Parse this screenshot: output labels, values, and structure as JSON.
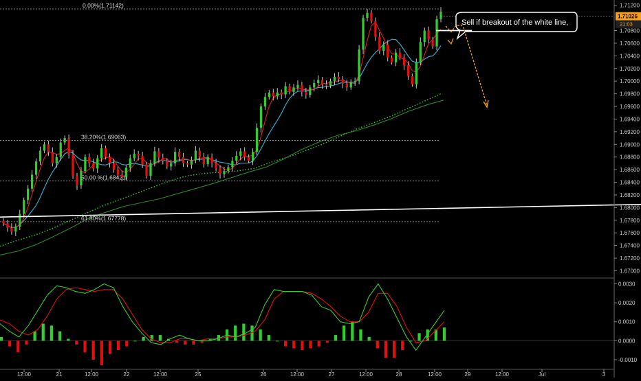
{
  "chart_data": {
    "type": "candlestick",
    "main": {
      "ylim": [
        1.6694,
        1.7124
      ],
      "y_ticks": [
        "1.71200",
        "1.70800",
        "1.70600",
        "1.70400",
        "1.70200",
        "1.70000",
        "1.69800",
        "1.69600",
        "1.69400",
        "1.69200",
        "1.69000",
        "1.68800",
        "1.68600",
        "1.68400",
        "1.68200",
        "1.68000",
        "1.67800",
        "1.67600",
        "1.67400",
        "1.67200",
        "1.67000"
      ],
      "current_price": "1.71026",
      "countdown": "21:03",
      "fib_levels": [
        {
          "label": "0.00%(1.71142)",
          "value": 1.71142
        },
        {
          "label": "38.20%(1.69063)",
          "value": 1.69063
        },
        {
          "label": "50.00 %(1.68421)",
          "value": 1.68421
        },
        {
          "label": "61.80%(1.67778)",
          "value": 1.67778
        }
      ],
      "trendline": {
        "start": [
          0,
          1.6785
        ],
        "end": [
          932,
          1.6805
        ]
      },
      "annotation": {
        "text": "Sell if breakout of the white line,"
      },
      "close_series": [
        1.6775,
        1.6768,
        1.6762,
        1.677,
        1.679,
        1.6812,
        1.683,
        1.6852,
        1.6873,
        1.689,
        1.69,
        1.6888,
        1.687,
        1.688,
        1.6903,
        1.691,
        1.6884,
        1.685,
        1.6835,
        1.6858,
        1.688,
        1.687,
        1.6862,
        1.6878,
        1.6894,
        1.688,
        1.687,
        1.686,
        1.6852,
        1.6848,
        1.6863,
        1.6878,
        1.6885,
        1.6882,
        1.6868,
        1.685,
        1.687,
        1.6889,
        1.6879,
        1.6874,
        1.6865,
        1.687,
        1.6888,
        1.688,
        1.687,
        1.6868,
        1.6875,
        1.689,
        1.688,
        1.6869,
        1.688,
        1.687,
        1.6862,
        1.6853,
        1.6858,
        1.6864,
        1.6874,
        1.6882,
        1.6889,
        1.688,
        1.6874,
        1.6888,
        1.6926,
        1.696,
        1.6975,
        1.6982,
        1.6976,
        1.6982,
        1.6979,
        1.6992,
        1.6983,
        1.699,
        1.6994,
        1.6983,
        1.6978,
        1.699,
        1.6997,
        1.7002,
        1.6995,
        1.6993,
        1.7,
        1.7007,
        1.7003,
        1.6996,
        1.699,
        1.6999,
        1.7,
        1.705,
        1.71,
        1.7108,
        1.7095,
        1.707,
        1.7048,
        1.7058,
        1.7037,
        1.703,
        1.7045,
        1.7038,
        1.7025,
        1.7008,
        1.6995,
        1.703,
        1.7062,
        1.708,
        1.7066,
        1.7055,
        1.7098,
        1.711
      ],
      "ma_slow": [
        1.6739,
        1.6748,
        1.6756,
        1.6766,
        1.6778,
        1.679,
        1.6802,
        1.6812,
        1.6822,
        1.6832,
        1.6842,
        1.685,
        1.6854,
        1.6856,
        1.6858,
        1.6862,
        1.6872,
        1.688,
        1.689,
        1.69,
        1.6912,
        1.6924,
        1.6934,
        1.6944,
        1.6956,
        1.6968,
        1.698
      ],
      "ma_200": [
        1.6725,
        1.6731,
        1.6741,
        1.6754,
        1.6768,
        1.6783,
        1.6793,
        1.6802,
        1.6808,
        1.6814,
        1.6822,
        1.683,
        1.6838,
        1.6847,
        1.6856,
        1.6864,
        1.6877,
        1.6892,
        1.6904,
        1.6914,
        1.6921,
        1.693,
        1.694,
        1.6952,
        1.6962,
        1.697
      ]
    },
    "oscillator": {
      "ylim": [
        -0.0014,
        0.0032
      ],
      "y_ticks": [
        "0.0030",
        "0.0020",
        "0.0010",
        "0.0000",
        "-0.0010"
      ],
      "green_line": [
        0.0009,
        0.0005,
        0.0002,
        0.0008,
        0.0016,
        0.0024,
        0.0029,
        0.0028,
        0.0026,
        0.0025,
        0.0027,
        0.003,
        0.0028,
        0.0018,
        0.001,
        0.0004,
        -0.0001,
        -0.0002,
        0.0001,
        0.0003,
        0.0001,
        0.0,
        0.0,
        0.0001,
        0.0003,
        0.0002,
        0.0004,
        0.0007,
        0.0019,
        0.0027,
        0.0026,
        0.0026,
        0.0026,
        0.0024,
        0.0018,
        0.0016,
        0.001,
        0.0009,
        0.001,
        0.0023,
        0.003,
        0.0022,
        0.0012,
        0.0002,
        -0.0005,
        0.0002,
        0.0009,
        0.0016
      ],
      "red_line": [
        0.0011,
        0.0009,
        0.0005,
        0.0003,
        0.0006,
        0.0013,
        0.0022,
        0.0027,
        0.0028,
        0.0027,
        0.0026,
        0.0027,
        0.0027,
        0.0022,
        0.0014,
        0.0006,
        0.0001,
        -0.0001,
        -0.0001,
        0.0001,
        0.0001,
        0.0,
        0.0001,
        0.0001,
        0.0002,
        0.0002,
        0.0003,
        0.0005,
        0.0011,
        0.0022,
        0.0026,
        0.0026,
        0.0026,
        0.0025,
        0.0022,
        0.0018,
        0.0013,
        0.001,
        0.001,
        0.0015,
        0.0025,
        0.0025,
        0.0018,
        0.0007,
        -0.0001,
        0.0,
        0.0005,
        0.001
      ],
      "histogram": [
        0.0002,
        -0.0003,
        -0.0006,
        -0.0002,
        0.0005,
        0.0009,
        0.0008,
        0.0005,
        0.0001,
        -0.0002,
        -0.0006,
        -0.001,
        -0.0013,
        -0.0007,
        -0.0005,
        -0.0003,
        0.0,
        0.0002,
        0.0003,
        0.0003,
        0.0001,
        -0.0001,
        -0.0002,
        -0.0002,
        -0.0001,
        0.0001,
        0.0003,
        0.0006,
        0.0008,
        0.0009,
        0.0008,
        0.0006,
        0.0003,
        0.0,
        -0.0003,
        -0.0004,
        -0.0005,
        -0.0004,
        -0.0003,
        -0.0001,
        0.0003,
        0.0008,
        0.001,
        0.0006,
        0.0002,
        -0.0004,
        -0.0009,
        -0.0009,
        -0.0005,
        0.0,
        0.0004,
        0.0006,
        0.0006,
        0.0007
      ]
    },
    "x_labels": [
      "12:00",
      "21",
      "12:00",
      "22",
      "12:00",
      "25",
      "26",
      "12:00",
      "27",
      "12:00",
      "28",
      "12:00",
      "29",
      "12:00",
      "Jul",
      "3"
    ]
  },
  "colors": {
    "background": "#000000",
    "bull": "#33cc33",
    "bear": "#e01010",
    "ma_fast": "#dd2020",
    "ma_mid": "#33aacc",
    "ma_dotted": "#33cc33",
    "ma_slow": "#2a8a2a",
    "trendline": "#ffffff",
    "fib": "#888888",
    "arrow": "#f5a020",
    "price_tag": "#f5a020",
    "axis_text": "#cccccc"
  }
}
